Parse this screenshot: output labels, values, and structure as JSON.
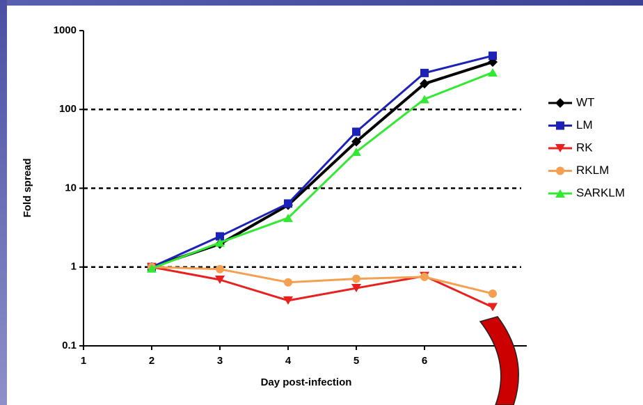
{
  "chart_data": {
    "type": "line",
    "x_label": "Day post-infection",
    "y_label": "Fold spread",
    "x": [
      2,
      3,
      4,
      5,
      6,
      7
    ],
    "xlim": [
      1,
      7.5
    ],
    "xticks": [
      1,
      2,
      3,
      4,
      5,
      6
    ],
    "ylim": [
      0.1,
      1000
    ],
    "yticks": [
      0.1,
      1,
      10,
      100,
      1000
    ],
    "yscale": "log",
    "grid": true,
    "legend_position": "right",
    "series": [
      {
        "name": "WT",
        "color": "#000000",
        "marker": "diamond",
        "values": [
          1,
          1.96,
          6.1,
          39,
          212,
          400
        ]
      },
      {
        "name": "LM",
        "color": "#1c22b8",
        "marker": "square",
        "values": [
          1,
          2.45,
          6.4,
          52,
          290,
          480
        ]
      },
      {
        "name": "RK",
        "color": "#e8201e",
        "marker": "triangle-down",
        "values": [
          1,
          0.69,
          0.376,
          0.54,
          0.77,
          0.31
        ]
      },
      {
        "name": "RKLM",
        "color": "#f5a050",
        "marker": "circle",
        "values": [
          1,
          0.94,
          0.64,
          0.71,
          0.75,
          0.46
        ]
      },
      {
        "name": "SARKLM",
        "color": "#33e833",
        "marker": "triangle-up",
        "values": [
          0.96,
          2.04,
          4.2,
          29,
          135,
          295
        ]
      }
    ]
  }
}
